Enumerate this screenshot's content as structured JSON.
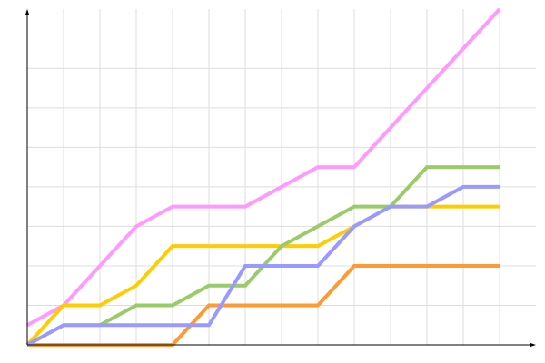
{
  "chart_data": {
    "type": "line",
    "title": "",
    "xlabel": "",
    "ylabel": "",
    "x": [
      0,
      1,
      2,
      3,
      4,
      5,
      6,
      7,
      8,
      9,
      10,
      11,
      12,
      13
    ],
    "xlim": [
      0,
      14
    ],
    "ylim": [
      0,
      8.5
    ],
    "grid": true,
    "tick_labels_shown": false,
    "axis_arrows": true,
    "series": [
      {
        "color": "#ff99ff",
        "values": [
          0.5,
          1,
          2,
          3,
          3.5,
          3.5,
          3.5,
          4,
          4.5,
          4.5,
          5.5,
          6.5,
          7.5,
          8.5
        ]
      },
      {
        "color": "#ffcc00",
        "values": [
          0,
          1,
          1,
          1.5,
          2.5,
          2.5,
          2.5,
          2.5,
          2.5,
          3,
          3.5,
          3.5,
          3.5,
          3.5
        ]
      },
      {
        "color": "#ff9933",
        "values": [
          0,
          0,
          0,
          0,
          0,
          1,
          1,
          1,
          1,
          2,
          2,
          2,
          2,
          2
        ]
      },
      {
        "color": "#99cc66",
        "values": [
          0,
          0.5,
          0.5,
          1,
          1,
          1.5,
          1.5,
          2.5,
          3,
          3.5,
          3.5,
          4.5,
          4.5,
          4.5
        ]
      },
      {
        "color": "#9999ff",
        "values": [
          0,
          0.5,
          0.5,
          0.5,
          0.5,
          0.5,
          2,
          2,
          2,
          3,
          3.5,
          3.5,
          4,
          4
        ]
      }
    ]
  }
}
